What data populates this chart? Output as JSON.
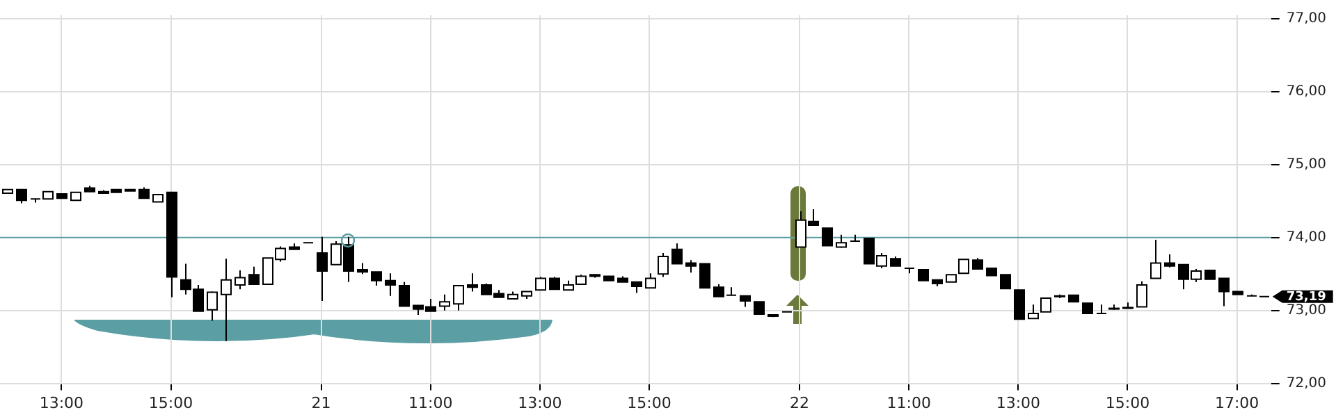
{
  "chart_data": {
    "type": "candlestick",
    "color": "#000000",
    "categories": [
      null,
      null,
      null,
      null,
      "13:00",
      null,
      null,
      null,
      null,
      null,
      null,
      null,
      "15:00",
      null,
      null,
      null,
      null,
      null,
      null,
      null,
      null,
      null,
      null,
      "21",
      null,
      null,
      null,
      null,
      null,
      null,
      null,
      "11:00",
      null,
      null,
      null,
      null,
      null,
      null,
      null,
      "13:00",
      null,
      null,
      null,
      null,
      null,
      null,
      null,
      "15:00",
      null,
      null,
      null,
      null,
      null,
      null,
      null,
      null,
      null,
      null,
      "22",
      null,
      null,
      null,
      null,
      null,
      null,
      null,
      "11:00",
      null,
      null,
      null,
      null,
      null,
      null,
      null,
      "13:00",
      null,
      null,
      null,
      null,
      null,
      null,
      null,
      "15:00",
      null,
      null,
      null,
      null,
      null,
      null,
      null,
      "17:00",
      null,
      null
    ],
    "ohlc": [
      [
        74.61,
        74.66,
        74.61,
        74.66
      ],
      [
        74.66,
        74.66,
        74.47,
        74.51
      ],
      [
        74.53,
        74.53,
        74.48,
        74.53
      ],
      [
        74.53,
        74.63,
        74.53,
        74.63
      ],
      [
        74.6,
        74.6,
        74.54,
        74.54
      ],
      [
        74.51,
        74.62,
        74.51,
        74.62
      ],
      [
        74.68,
        74.71,
        74.63,
        74.63
      ],
      [
        74.63,
        74.65,
        74.6,
        74.61
      ],
      [
        74.66,
        74.66,
        74.62,
        74.62
      ],
      [
        74.66,
        74.66,
        74.64,
        74.64
      ],
      [
        74.66,
        74.69,
        74.54,
        74.54
      ],
      [
        74.49,
        74.59,
        74.49,
        74.59
      ],
      [
        74.62,
        74.62,
        73.18,
        73.46
      ],
      [
        73.42,
        73.64,
        73.22,
        73.29
      ],
      [
        73.29,
        73.35,
        72.99,
        72.99
      ],
      [
        73.01,
        73.26,
        72.86,
        73.25
      ],
      [
        73.22,
        73.71,
        72.58,
        73.42
      ],
      [
        73.35,
        73.55,
        73.29,
        73.45
      ],
      [
        73.49,
        73.6,
        73.36,
        73.36
      ],
      [
        73.36,
        73.72,
        73.36,
        73.72
      ],
      [
        73.7,
        73.88,
        73.67,
        73.85
      ],
      [
        73.87,
        73.92,
        73.84,
        73.84
      ],
      [
        73.93,
        73.93,
        73.93,
        73.93
      ],
      [
        73.79,
        74.01,
        73.13,
        73.54
      ],
      [
        73.63,
        73.95,
        73.63,
        73.91
      ],
      [
        73.9,
        74.01,
        73.39,
        73.54
      ],
      [
        73.56,
        73.65,
        73.5,
        73.53
      ],
      [
        73.53,
        73.53,
        73.34,
        73.41
      ],
      [
        73.41,
        73.51,
        73.2,
        73.35
      ],
      [
        73.34,
        73.39,
        73.06,
        73.06
      ],
      [
        73.07,
        73.07,
        72.94,
        73.02
      ],
      [
        73.05,
        73.16,
        72.99,
        72.99
      ],
      [
        73.06,
        73.22,
        73.0,
        73.12
      ],
      [
        73.09,
        73.34,
        73.0,
        73.34
      ],
      [
        73.35,
        73.51,
        73.26,
        73.32
      ],
      [
        73.35,
        73.37,
        73.22,
        73.22
      ],
      [
        73.23,
        73.28,
        73.18,
        73.18
      ],
      [
        73.16,
        73.26,
        73.16,
        73.22
      ],
      [
        73.2,
        73.26,
        73.16,
        73.26
      ],
      [
        73.28,
        73.46,
        73.28,
        73.44
      ],
      [
        73.44,
        73.46,
        73.29,
        73.29
      ],
      [
        73.28,
        73.41,
        73.28,
        73.35
      ],
      [
        73.36,
        73.49,
        73.36,
        73.47
      ],
      [
        73.49,
        73.49,
        73.45,
        73.47
      ],
      [
        73.47,
        73.47,
        73.41,
        73.41
      ],
      [
        73.44,
        73.47,
        73.39,
        73.39
      ],
      [
        73.39,
        73.39,
        73.24,
        73.33
      ],
      [
        73.31,
        73.51,
        73.31,
        73.44
      ],
      [
        73.5,
        73.79,
        73.46,
        73.74
      ],
      [
        73.84,
        73.92,
        73.64,
        73.64
      ],
      [
        73.65,
        73.69,
        73.52,
        73.61
      ],
      [
        73.64,
        73.64,
        73.31,
        73.31
      ],
      [
        73.32,
        73.36,
        73.19,
        73.19
      ],
      [
        73.21,
        73.32,
        73.21,
        73.21
      ],
      [
        73.2,
        73.2,
        73.05,
        73.13
      ],
      [
        73.12,
        73.12,
        72.95,
        72.95
      ],
      [
        72.94,
        72.94,
        72.91,
        72.92
      ],
      [
        72.98,
        72.98,
        72.98,
        72.98
      ],
      [
        73.87,
        74.36,
        73.87,
        74.24
      ],
      [
        74.22,
        74.39,
        74.17,
        74.17
      ],
      [
        74.13,
        74.13,
        73.89,
        73.89
      ],
      [
        73.87,
        74.04,
        73.86,
        73.93
      ],
      [
        73.95,
        74.04,
        73.95,
        73.95
      ],
      [
        73.99,
        73.99,
        73.64,
        73.64
      ],
      [
        73.61,
        73.79,
        73.58,
        73.75
      ],
      [
        73.71,
        73.74,
        73.61,
        73.61
      ],
      [
        73.58,
        73.58,
        73.51,
        73.58
      ],
      [
        73.56,
        73.56,
        73.41,
        73.41
      ],
      [
        73.42,
        73.42,
        73.33,
        73.37
      ],
      [
        73.39,
        73.49,
        73.39,
        73.49
      ],
      [
        73.51,
        73.7,
        73.51,
        73.7
      ],
      [
        73.69,
        73.72,
        73.57,
        73.57
      ],
      [
        73.58,
        73.58,
        73.48,
        73.48
      ],
      [
        73.49,
        73.49,
        73.3,
        73.3
      ],
      [
        73.28,
        73.28,
        72.88,
        72.88
      ],
      [
        72.89,
        73.08,
        72.89,
        72.96
      ],
      [
        72.98,
        73.17,
        72.98,
        73.17
      ],
      [
        73.19,
        73.22,
        73.17,
        73.2
      ],
      [
        73.21,
        73.21,
        73.12,
        73.12
      ],
      [
        73.1,
        73.1,
        72.96,
        72.96
      ],
      [
        72.96,
        73.08,
        72.96,
        72.96
      ],
      [
        73.02,
        73.08,
        73.01,
        73.03
      ],
      [
        73.04,
        73.11,
        73.03,
        73.03
      ],
      [
        73.05,
        73.4,
        73.05,
        73.35
      ],
      [
        73.44,
        73.97,
        73.44,
        73.65
      ],
      [
        73.65,
        73.77,
        73.59,
        73.61
      ],
      [
        73.63,
        73.63,
        73.29,
        73.43
      ],
      [
        73.43,
        73.57,
        73.39,
        73.54
      ],
      [
        73.55,
        73.56,
        73.43,
        73.43
      ],
      [
        73.44,
        73.44,
        73.06,
        73.26
      ],
      [
        73.26,
        73.26,
        73.22,
        73.22
      ],
      [
        73.2,
        73.22,
        73.2,
        73.2
      ],
      [
        73.19,
        73.19,
        73.19,
        73.19
      ]
    ],
    "ylim": [
      72,
      77.05
    ],
    "yticks": [
      {
        "value": 72,
        "label": "72,00"
      },
      {
        "value": 73,
        "label": "73,00"
      },
      {
        "value": 74,
        "label": "74,00"
      },
      {
        "value": 75,
        "label": "75,00"
      },
      {
        "value": 76,
        "label": "76,00"
      },
      {
        "value": 77,
        "label": "77,00"
      }
    ],
    "grid": true,
    "ref_lines": [
      {
        "axis": "y",
        "value": 74,
        "color": "#5b9ea3"
      }
    ],
    "annotations": [
      "73,19"
    ]
  }
}
